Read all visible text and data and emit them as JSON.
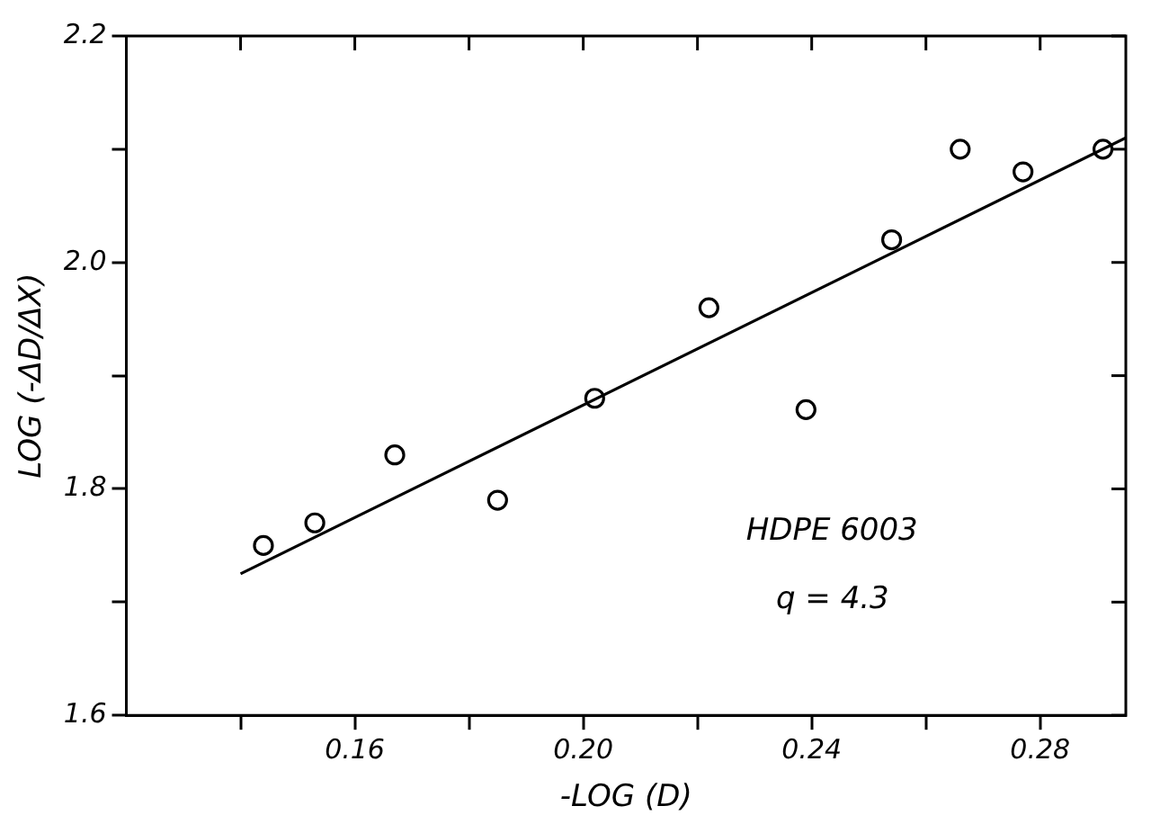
{
  "chart_data": {
    "type": "scatter",
    "xlabel": "-LOG (D)",
    "ylabel": "LOG (-ΔD/ΔX)",
    "series": [
      {
        "type": "scatter",
        "color": "#000000",
        "marker": "circle",
        "x": [
          0.144,
          0.153,
          0.167,
          0.185,
          0.202,
          0.222,
          0.239,
          0.254,
          0.266,
          0.277,
          0.291
        ],
        "values": [
          1.75,
          1.77,
          1.83,
          1.79,
          1.88,
          1.96,
          1.87,
          2.02,
          2.1,
          2.08,
          2.1
        ]
      },
      {
        "type": "line",
        "color": "#000000",
        "marker": "none",
        "x": [
          0.14,
          0.295
        ],
        "values": [
          1.725,
          2.11
        ]
      }
    ],
    "xlim": [
      0.12,
      0.295
    ],
    "ylim": [
      1.6,
      2.2
    ],
    "xticks": [
      {
        "value": 0.14,
        "label": null
      },
      0.16,
      {
        "value": 0.18,
        "label": null
      },
      {
        "value": 0.2,
        "label": "0.20"
      },
      {
        "value": 0.22,
        "label": null
      },
      0.24,
      {
        "value": 0.26,
        "label": null
      },
      0.28
    ],
    "yticks": [
      1.6,
      {
        "value": 1.7,
        "label": null
      },
      1.8,
      {
        "value": 1.9,
        "label": null
      },
      {
        "value": 2,
        "label": "2.0"
      },
      {
        "value": 2.1,
        "label": null
      },
      2.2
    ],
    "grid": false,
    "legend": false,
    "annotations": [
      "HDPE 6003",
      "q = 4.3"
    ]
  }
}
